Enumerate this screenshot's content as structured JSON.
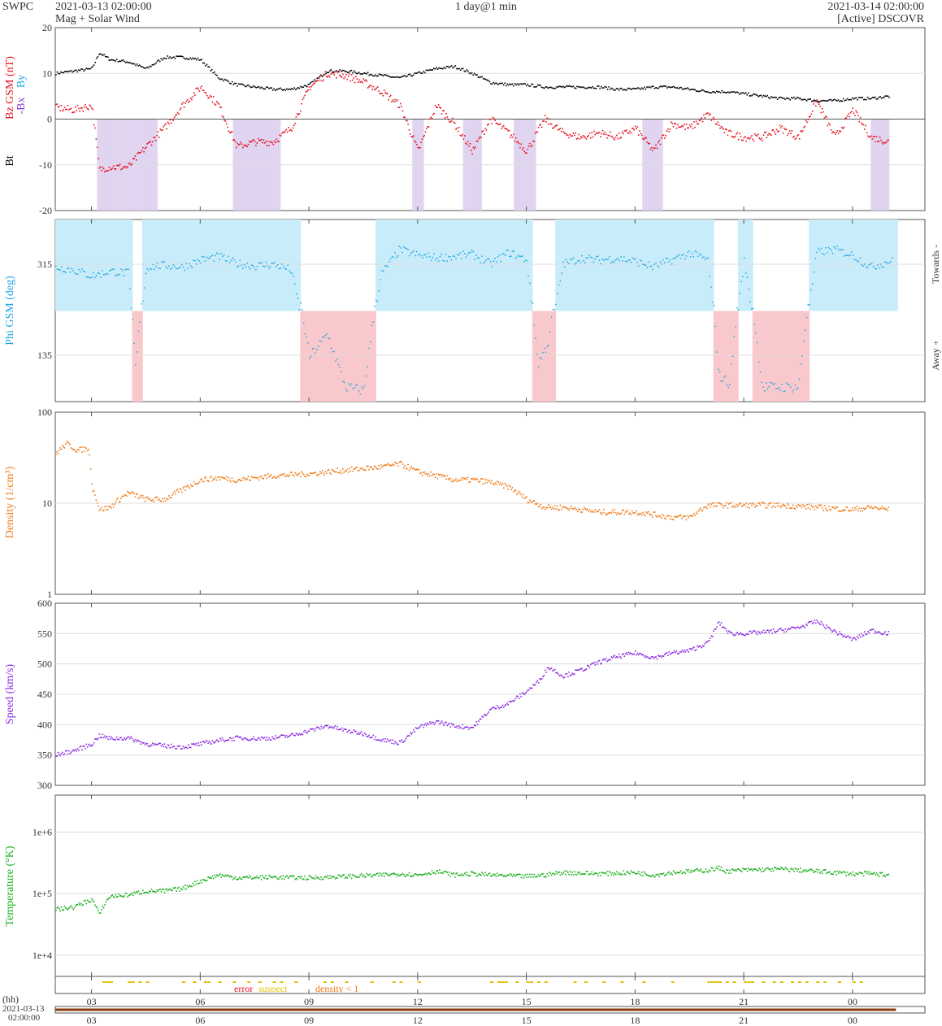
{
  "header": {
    "org": "SWPC",
    "start": "2021-03-13 02:00:00",
    "subtitle": "Mag + Solar Wind",
    "resolution": "1 day@1 min",
    "end": "2021-03-14 02:00:00",
    "source": "[Active] DSCOVR"
  },
  "colors": {
    "bt": "#000000",
    "bz": "#e8101e",
    "bx": "#8a3bd4",
    "by": "#21a6e0",
    "phi_towards": "#c8ecfa",
    "phi_away": "#f9c8cc",
    "bz_neg": "#ddd0ef",
    "density": "#f07b18",
    "speed": "#8a2be2",
    "temperature": "#1ab01a",
    "error": "#e8101e",
    "suspect": "#e5c000",
    "density_lt1": "#f07b18"
  },
  "labels": {
    "bt": "Bt",
    "bz": "Bz GSM (nT)",
    "bx": "-Bx",
    "by": "By",
    "phi": "Phi GSM (deg)",
    "towards": "Towards -",
    "away": "Away +",
    "density": "Density (1/cm³)",
    "speed": "Speed (km/s)",
    "temperature": "Temperature (°K)",
    "error": "error",
    "suspect": "suspect",
    "density_lt1": "density < 1",
    "hh": "(hh)",
    "date_line1": "2021-03-13",
    "date_line2": "02:00:00"
  },
  "chart_data": [
    {
      "type": "scatter",
      "name": "mag",
      "x_hours_ticks": [
        "03",
        "06",
        "09",
        "12",
        "15",
        "18",
        "21",
        "00"
      ],
      "ylim": [
        -20,
        20
      ],
      "yticks": [
        "20",
        "10",
        "0",
        "-10",
        "-20"
      ],
      "series": [
        {
          "name": "Bt",
          "x": [
            2.0,
            2.5,
            3.0,
            3.2,
            3.5,
            4.0,
            4.5,
            5.0,
            5.5,
            6.0,
            6.5,
            7.0,
            7.5,
            8.0,
            8.5,
            9.0,
            9.5,
            10.0,
            10.5,
            11.0,
            11.5,
            12.0,
            12.5,
            13.0,
            13.5,
            14.0,
            14.5,
            15.0,
            15.5,
            16.0,
            16.5,
            17.0,
            17.5,
            18.0,
            18.5,
            19.0,
            19.5,
            20.0,
            20.5,
            21.0,
            21.5,
            22.0,
            22.5,
            23.0,
            23.5,
            24.0,
            24.5,
            25.0
          ],
          "values": [
            10,
            10.5,
            11,
            14.5,
            13,
            12.5,
            11,
            13.5,
            13.5,
            13,
            9,
            7.5,
            7,
            6.5,
            6.5,
            7.5,
            10.5,
            10.5,
            10,
            9.5,
            9,
            10,
            11,
            11.5,
            10,
            8,
            7.5,
            7.5,
            7,
            7,
            7,
            7,
            6.5,
            6.5,
            7,
            7,
            6.5,
            6,
            6,
            5.5,
            5,
            4.5,
            4.5,
            4,
            4,
            4.5,
            4.5,
            5
          ]
        },
        {
          "name": "Bz GSM",
          "x": [
            2.0,
            2.5,
            3.0,
            3.2,
            3.5,
            4.0,
            4.5,
            5.0,
            5.5,
            6.0,
            6.5,
            7.0,
            7.5,
            8.0,
            8.5,
            9.0,
            9.5,
            10.0,
            10.5,
            11.0,
            11.5,
            12.0,
            12.5,
            13.0,
            13.5,
            14.0,
            14.5,
            15.0,
            15.5,
            16.0,
            16.5,
            17.0,
            17.5,
            18.0,
            18.5,
            19.0,
            19.5,
            20.0,
            20.5,
            21.0,
            21.5,
            22.0,
            22.5,
            23.0,
            23.5,
            24.0,
            24.5,
            25.0
          ],
          "values": [
            2.5,
            2,
            3,
            -11,
            -10.5,
            -10.5,
            -6,
            -2,
            3,
            7,
            3,
            -6,
            -5,
            -5,
            -2,
            7,
            10,
            9.5,
            8,
            6,
            3,
            -7,
            3,
            -1,
            -7,
            0,
            -3,
            -7,
            0,
            -3,
            -4,
            -3,
            -4,
            -2,
            -7,
            -1,
            -2,
            1,
            -3,
            -4,
            -4,
            -2,
            -4,
            4,
            -4,
            2,
            -4,
            -5
          ]
        }
      ]
    },
    {
      "type": "scatter",
      "name": "phi",
      "yticks": [
        "315",
        "135"
      ],
      "labels_right": [
        "Towards -",
        "Away +"
      ],
      "series": [
        {
          "name": "Phi GSM",
          "x": [
            2.0,
            2.5,
            3.0,
            3.5,
            4.0,
            4.2,
            4.5,
            5.0,
            5.5,
            6.0,
            6.5,
            7.0,
            7.5,
            8.0,
            8.5,
            9.0,
            9.5,
            10.0,
            10.5,
            11.0,
            11.5,
            12.0,
            12.5,
            13.0,
            13.5,
            14.0,
            14.5,
            15.0,
            15.3,
            15.6,
            16.0,
            16.5,
            17.0,
            17.5,
            18.0,
            18.5,
            19.0,
            19.5,
            20.0,
            20.3,
            20.6,
            21.0,
            21.5,
            22.0,
            22.5,
            23.0,
            23.5,
            24.0,
            24.5,
            25.0
          ],
          "values": [
            300,
            295,
            285,
            293,
            290,
            135,
            300,
            303,
            300,
            312,
            318,
            306,
            302,
            305,
            295,
            150,
            180,
            110,
            105,
            290,
            330,
            320,
            316,
            318,
            322,
            305,
            325,
            312,
            140,
            170,
            305,
            315,
            312,
            315,
            310,
            300,
            312,
            324,
            312,
            125,
            115,
            310,
            110,
            110,
            110,
            325,
            330,
            320,
            300,
            310
          ]
        }
      ]
    },
    {
      "type": "scatter",
      "name": "density",
      "ylim": [
        1,
        100
      ],
      "yscale": "log",
      "yticks": [
        "100",
        "10",
        "1"
      ],
      "series": [
        {
          "name": "Density",
          "x": [
            2.0,
            2.3,
            2.6,
            2.9,
            3.0,
            3.2,
            3.5,
            4.0,
            4.5,
            5.0,
            5.5,
            6.0,
            6.5,
            7.0,
            8.0,
            9.0,
            10.0,
            10.5,
            11.0,
            11.5,
            12.0,
            12.5,
            13.0,
            13.5,
            14.0,
            14.5,
            15.0,
            15.5,
            16.0,
            16.5,
            17.0,
            17.5,
            18.0,
            18.5,
            19.0,
            19.5,
            20.0,
            20.5,
            21.0,
            22.0,
            23.0,
            24.0,
            24.5,
            25.0
          ],
          "values": [
            35,
            45,
            38,
            40,
            15,
            8.5,
            9,
            13,
            11,
            11,
            14,
            18,
            19,
            18,
            20,
            21,
            23,
            24,
            25,
            27,
            22,
            20,
            18,
            18,
            17,
            15,
            11,
            9,
            9,
            8.5,
            8,
            8,
            8,
            7.5,
            7,
            7,
            9.5,
            9.5,
            9.5,
            9.5,
            9,
            8.5,
            9,
            8.5
          ]
        }
      ]
    },
    {
      "type": "scatter",
      "name": "speed",
      "ylim": [
        300,
        600
      ],
      "yticks": [
        "600",
        "550",
        "500",
        "450",
        "400",
        "350",
        "300"
      ],
      "series": [
        {
          "name": "Speed",
          "x": [
            2.0,
            2.5,
            3.0,
            3.2,
            3.5,
            4.0,
            4.5,
            5.0,
            5.5,
            6.0,
            6.5,
            7.0,
            7.5,
            8.0,
            8.5,
            9.0,
            9.5,
            10.0,
            10.5,
            11.0,
            11.5,
            12.0,
            12.5,
            13.0,
            13.5,
            14.0,
            14.5,
            15.0,
            15.3,
            15.6,
            16.0,
            16.5,
            17.0,
            17.5,
            18.0,
            18.5,
            19.0,
            19.5,
            20.0,
            20.3,
            20.6,
            21.0,
            21.5,
            22.0,
            22.5,
            23.0,
            23.5,
            24.0,
            24.5,
            25.0
          ],
          "values": [
            350,
            357,
            368,
            382,
            377,
            378,
            368,
            365,
            363,
            368,
            374,
            378,
            377,
            378,
            382,
            390,
            398,
            390,
            385,
            375,
            370,
            395,
            405,
            398,
            395,
            425,
            435,
            455,
            470,
            495,
            480,
            490,
            503,
            512,
            518,
            510,
            518,
            522,
            535,
            568,
            550,
            550,
            552,
            555,
            560,
            570,
            553,
            540,
            555,
            550
          ]
        }
      ]
    },
    {
      "type": "scatter",
      "name": "temperature",
      "yscale": "log",
      "yticks": [
        "1e+6",
        "1e+5",
        "1e+4"
      ],
      "series": [
        {
          "name": "Temperature",
          "x": [
            2.0,
            2.5,
            3.0,
            3.2,
            3.5,
            4.0,
            4.5,
            5.0,
            5.5,
            6.0,
            6.5,
            7.0,
            8.0,
            9.0,
            10.0,
            11.0,
            11.5,
            12.0,
            12.5,
            13.0,
            13.5,
            14.0,
            15.0,
            15.5,
            16.0,
            17.0,
            18.0,
            18.5,
            19.0,
            20.0,
            20.3,
            20.5,
            21.0,
            22.0,
            23.0,
            24.0,
            24.5,
            25.0
          ],
          "values": [
            55000,
            60000,
            80000,
            45000,
            90000,
            95000,
            110000,
            110000,
            120000,
            160000,
            200000,
            180000,
            185000,
            180000,
            190000,
            200000,
            210000,
            200000,
            230000,
            200000,
            210000,
            200000,
            190000,
            200000,
            220000,
            210000,
            220000,
            200000,
            220000,
            240000,
            260000,
            230000,
            240000,
            250000,
            230000,
            210000,
            210000,
            200000
          ]
        }
      ]
    }
  ],
  "flags": {
    "suspect_hours": [
      3.3,
      3.4,
      3.5,
      4.0,
      4.1,
      4.3,
      4.5,
      5.5,
      5.8,
      6.1,
      6.2,
      6.5,
      6.9,
      7.3,
      7.6,
      8.0,
      8.2,
      8.6,
      9.4,
      9.6,
      10.0,
      10.7,
      11.3,
      11.5,
      12.0,
      14.0,
      14.2,
      14.3,
      14.4,
      14.7,
      15.0,
      15.1,
      15.3,
      15.5,
      16.3,
      16.6,
      17.1,
      17.6,
      18.2,
      19.0,
      20.0,
      20.1,
      20.2,
      20.3,
      20.5,
      20.7,
      21.0,
      21.1,
      21.2,
      21.5,
      21.8,
      22.0,
      22.3,
      22.5,
      22.7,
      23.0,
      23.2,
      23.6,
      24.0,
      24.2
    ],
    "error_hours": []
  }
}
